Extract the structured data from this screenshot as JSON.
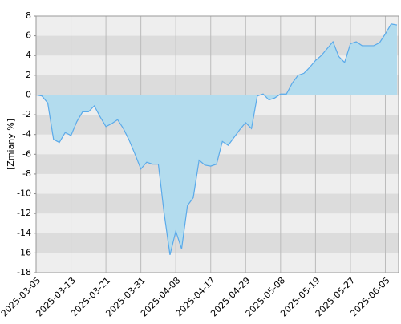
{
  "chart_data": {
    "type": "area",
    "y_label": "[Zmiany %]",
    "categories": [
      "2025-03-05",
      null,
      null,
      null,
      null,
      null,
      "2025-03-13",
      null,
      null,
      null,
      null,
      null,
      "2025-03-21",
      null,
      null,
      null,
      null,
      null,
      "2025-03-31",
      null,
      null,
      null,
      null,
      null,
      "2025-04-08",
      null,
      null,
      null,
      null,
      null,
      "2025-04-17",
      null,
      null,
      null,
      null,
      null,
      "2025-04-29",
      null,
      null,
      null,
      null,
      null,
      "2025-05-08",
      null,
      null,
      null,
      null,
      null,
      "2025-05-19",
      null,
      null,
      null,
      null,
      null,
      "2025-05-27",
      null,
      null,
      null,
      null,
      null,
      "2025-06-05",
      null,
      null
    ],
    "values": [
      0,
      -0.1,
      -0.8,
      -4.5,
      -4.8,
      -3.8,
      -4.1,
      -2.7,
      -1.7,
      -1.7,
      -1.1,
      -2.2,
      -3.2,
      -2.9,
      -2.5,
      -3.4,
      -4.6,
      -6.0,
      -7.5,
      -6.8,
      -7.0,
      -7.0,
      -12.0,
      -16.2,
      -13.8,
      -15.6,
      -11.2,
      -10.4,
      -6.6,
      -7.1,
      -7.2,
      -7.0,
      -4.7,
      -5.1,
      -4.3,
      -3.5,
      -2.8,
      -3.4,
      -0.1,
      0.1,
      -0.5,
      -0.3,
      0.1,
      0.1,
      1.2,
      2.0,
      2.2,
      2.8,
      3.5,
      4.0,
      4.7,
      5.4,
      3.9,
      3.3,
      5.2,
      5.4,
      5.0,
      5.0,
      5.0,
      5.3,
      6.2,
      7.2,
      7.1
    ],
    "color": "#5aaaea",
    "fill_color": "#b3dcee",
    "ylim": [
      -18,
      8
    ],
    "yticks": [
      -18,
      -16,
      -14,
      -12,
      -10,
      -8,
      -6,
      -4,
      -2,
      0,
      2,
      4,
      6,
      8
    ],
    "grid": true
  }
}
